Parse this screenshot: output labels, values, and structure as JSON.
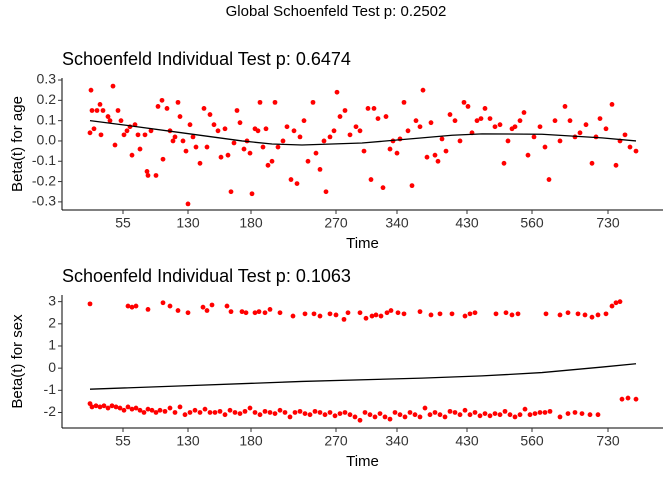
{
  "title": "Global Schoenfeld Test p: 0.2502",
  "chart_data": [
    {
      "type": "scatter",
      "title": "Schoenfeld Individual Test p: 0.6474",
      "x_label": "Time",
      "y_label": "Beta(t) for age",
      "xlim": [
        62,
        663
      ],
      "ylim": [
        -0.34,
        0.31
      ],
      "xticks": [
        {
          "value": 123,
          "label": "55"
        },
        {
          "value": 188,
          "label": "130"
        },
        {
          "value": 251,
          "label": "180"
        },
        {
          "value": 336,
          "label": "270"
        },
        {
          "value": 397,
          "label": "340"
        },
        {
          "value": 467,
          "label": "430"
        },
        {
          "value": 532,
          "label": "560"
        },
        {
          "value": 608,
          "label": "730"
        }
      ],
      "yticks": [
        0.3,
        0.2,
        0.1,
        {
          "value": 0,
          "label": "0.0"
        },
        -0.1,
        -0.2,
        -0.3
      ],
      "series": [
        {
          "color": "#ff0000",
          "style": "points",
          "x": [
            90,
            91,
            92,
            94,
            97,
            100,
            101,
            103,
            108,
            110,
            113,
            115,
            118,
            121,
            124,
            127,
            130,
            132,
            135,
            138,
            140,
            145,
            147,
            148,
            151,
            156,
            158,
            162,
            163,
            167,
            170,
            173,
            175,
            178,
            180,
            183,
            186,
            188,
            190,
            193,
            196,
            200,
            204,
            207,
            210,
            214,
            218,
            221,
            225,
            228,
            231,
            234,
            237,
            240,
            244,
            247,
            250,
            252,
            255,
            258,
            260,
            263,
            266,
            268,
            272,
            275,
            278,
            283,
            287,
            291,
            294,
            297,
            300,
            304,
            308,
            313,
            316,
            320,
            324,
            326,
            330,
            334,
            337,
            340,
            345,
            350,
            356,
            360,
            364,
            368,
            371,
            374,
            378,
            383,
            386,
            390,
            393,
            397,
            400,
            404,
            408,
            412,
            416,
            420,
            423,
            427,
            431,
            435,
            438,
            442,
            446,
            450,
            455,
            460,
            464,
            468,
            472,
            477,
            481,
            485,
            490,
            495,
            500,
            504,
            508,
            512,
            515,
            520,
            524,
            528,
            534,
            540,
            545,
            549,
            555,
            560,
            565,
            570,
            575,
            580,
            586,
            592,
            596,
            600,
            606,
            612,
            616,
            620,
            625,
            630,
            636
          ],
          "values": [
            0.04,
            0.25,
            0.15,
            0.06,
            0.15,
            0.18,
            0.03,
            0.15,
            0.12,
            0.1,
            0.27,
            -0.02,
            0.15,
            0.1,
            0.03,
            0.05,
            0.07,
            -0.07,
            0.08,
            0.03,
            -0.04,
            0.03,
            -0.15,
            -0.17,
            0.05,
            -0.17,
            0.17,
            0.2,
            -0.09,
            0.16,
            0.05,
            0.0,
            0.02,
            0.19,
            0.12,
            0.0,
            -0.05,
            -0.31,
            0.08,
            0.02,
            -0.03,
            -0.11,
            0.16,
            -0.03,
            0.13,
            0.08,
            0.05,
            -0.08,
            0.06,
            -0.07,
            -0.25,
            -0.01,
            0.15,
            0.09,
            -0.04,
            0.0,
            -0.06,
            -0.26,
            0.06,
            0.05,
            0.19,
            -0.03,
            0.06,
            -0.12,
            -0.1,
            0.19,
            -0.03,
            0.0,
            0.07,
            -0.19,
            0.05,
            -0.21,
            0.02,
            0.1,
            -0.1,
            0.19,
            -0.06,
            -0.14,
            0.0,
            -0.25,
            0.02,
            0.05,
            0.24,
            0.12,
            0.15,
            0.03,
            0.07,
            0.05,
            -0.05,
            0.16,
            -0.19,
            0.16,
            0.11,
            -0.23,
            0.12,
            -0.04,
            0.0,
            -0.06,
            0.01,
            0.19,
            0.05,
            -0.22,
            0.1,
            0.07,
            0.25,
            -0.08,
            0.09,
            -0.07,
            -0.1,
            0.01,
            -0.05,
            0.13,
            0.1,
            0.0,
            0.19,
            0.17,
            0.04,
            0.1,
            0.11,
            0.16,
            0.11,
            0.07,
            0.08,
            -0.11,
            0.0,
            0.06,
            0.07,
            0.1,
            0.14,
            -0.07,
            0.02,
            0.07,
            -0.03,
            -0.19,
            0.1,
            0.0,
            0.17,
            0.1,
            0.02,
            0.04,
            0.08,
            -0.11,
            0.02,
            0.11,
            0.06,
            0.18,
            -0.12,
            0.0,
            0.03,
            -0.03,
            -0.05
          ]
        },
        {
          "color": "#000000",
          "style": "line",
          "x": [
            90,
            122,
            182,
            242,
            272,
            302,
            362,
            422,
            452,
            482,
            542,
            602,
            636
          ],
          "values": [
            0.1,
            0.08,
            0.04,
            0.0,
            -0.015,
            -0.02,
            -0.01,
            0.015,
            0.028,
            0.035,
            0.033,
            0.015,
            0.0
          ]
        }
      ]
    },
    {
      "type": "scatter",
      "title": "Schoenfeld Individual Test p: 0.1063",
      "x_label": "Time",
      "y_label": "Beta(t) for sex",
      "xlim": [
        62,
        663
      ],
      "ylim": [
        -2.7,
        3.3
      ],
      "xticks": [
        {
          "value": 123,
          "label": "55"
        },
        {
          "value": 188,
          "label": "130"
        },
        {
          "value": 251,
          "label": "180"
        },
        {
          "value": 336,
          "label": "270"
        },
        {
          "value": 397,
          "label": "340"
        },
        {
          "value": 467,
          "label": "430"
        },
        {
          "value": 532,
          "label": "560"
        },
        {
          "value": 608,
          "label": "730"
        }
      ],
      "yticks": [
        3,
        2,
        1,
        0,
        -1,
        -2
      ],
      "series": [
        {
          "color": "#ff0000",
          "style": "points",
          "x": [
            90,
            128,
            132,
            136,
            148,
            163,
            170,
            178,
            188,
            203,
            207,
            212,
            227,
            231,
            242,
            246,
            255,
            259,
            265,
            270,
            280,
            293,
            305,
            314,
            320,
            330,
            336,
            344,
            348,
            360,
            366,
            372,
            376,
            381,
            387,
            391,
            398,
            404,
            420,
            431,
            440,
            452,
            465,
            470,
            475,
            496,
            506,
            512,
            518,
            546,
            560,
            568,
            578,
            585,
            592,
            598,
            606,
            612,
            616,
            620,
            90,
            92,
            96,
            100,
            104,
            108,
            112,
            116,
            120,
            124,
            128,
            132,
            136,
            140,
            144,
            148,
            152,
            156,
            160,
            165,
            170,
            175,
            180,
            185,
            190,
            195,
            200,
            205,
            210,
            215,
            220,
            225,
            230,
            235,
            240,
            245,
            250,
            255,
            260,
            265,
            270,
            275,
            280,
            285,
            290,
            295,
            300,
            305,
            310,
            315,
            320,
            325,
            330,
            335,
            340,
            345,
            350,
            355,
            360,
            365,
            370,
            375,
            380,
            385,
            390,
            395,
            400,
            405,
            410,
            415,
            420,
            425,
            430,
            435,
            440,
            445,
            450,
            455,
            460,
            465,
            470,
            475,
            480,
            485,
            490,
            495,
            500,
            505,
            510,
            515,
            520,
            525,
            530,
            535,
            540,
            545,
            550,
            560,
            568,
            575,
            582,
            590,
            598,
            622,
            628,
            636
          ],
          "values": [
            2.9,
            2.8,
            2.75,
            2.8,
            2.65,
            2.95,
            2.8,
            2.6,
            2.5,
            2.75,
            2.6,
            2.85,
            2.8,
            2.55,
            2.55,
            2.5,
            2.5,
            2.55,
            2.5,
            2.65,
            2.5,
            2.35,
            2.45,
            2.45,
            2.35,
            2.45,
            2.4,
            2.2,
            2.5,
            2.5,
            2.25,
            2.35,
            2.4,
            2.35,
            2.5,
            2.6,
            2.5,
            2.45,
            2.55,
            2.4,
            2.45,
            2.45,
            2.35,
            2.45,
            2.5,
            2.45,
            2.5,
            2.4,
            2.45,
            2.45,
            2.4,
            2.5,
            2.45,
            2.4,
            2.3,
            2.4,
            2.45,
            2.8,
            2.95,
            3.0,
            -1.6,
            -1.75,
            -1.7,
            -1.75,
            -1.7,
            -1.8,
            -1.7,
            -1.75,
            -1.8,
            -1.9,
            -1.75,
            -1.85,
            -1.8,
            -1.9,
            -2.0,
            -1.85,
            -1.9,
            -2.0,
            -1.9,
            -1.95,
            -1.8,
            -2.0,
            -1.75,
            -2.1,
            -2.0,
            -1.9,
            -2.0,
            -1.85,
            -2.0,
            -2.0,
            -1.95,
            -2.1,
            -1.9,
            -2.0,
            -2.05,
            -1.95,
            -1.8,
            -2.0,
            -2.1,
            -1.95,
            -2.0,
            -2.05,
            -1.9,
            -2.0,
            -2.2,
            -2.0,
            -1.95,
            -2.05,
            -2.1,
            -1.95,
            -2.0,
            -2.1,
            -2.0,
            -2.15,
            -2.05,
            -2.0,
            -2.1,
            -2.2,
            -2.35,
            -2.0,
            -2.1,
            -2.2,
            -2.05,
            -2.2,
            -2.3,
            -2.0,
            -2.1,
            -2.2,
            -2.0,
            -2.1,
            -2.2,
            -1.8,
            -2.1,
            -2.0,
            -2.1,
            -2.2,
            -1.95,
            -2.0,
            -2.1,
            -1.9,
            -2.1,
            -2.0,
            -2.15,
            -2.05,
            -2.15,
            -2.05,
            -2.1,
            -1.95,
            -2.1,
            -2.2,
            -2.1,
            -1.85,
            -2.1,
            -2.05,
            -2.0,
            -2.0,
            -1.95,
            -2.2,
            -2.05,
            -2.0,
            -2.05,
            -2.1,
            -2.1,
            -1.4,
            -1.35,
            -1.4
          ]
        },
        {
          "color": "#000000",
          "style": "line",
          "x": [
            90,
            182,
            302,
            422,
            482,
            542,
            602,
            636
          ],
          "values": [
            -0.95,
            -0.8,
            -0.6,
            -0.45,
            -0.35,
            -0.2,
            0.05,
            0.2
          ]
        }
      ]
    }
  ]
}
